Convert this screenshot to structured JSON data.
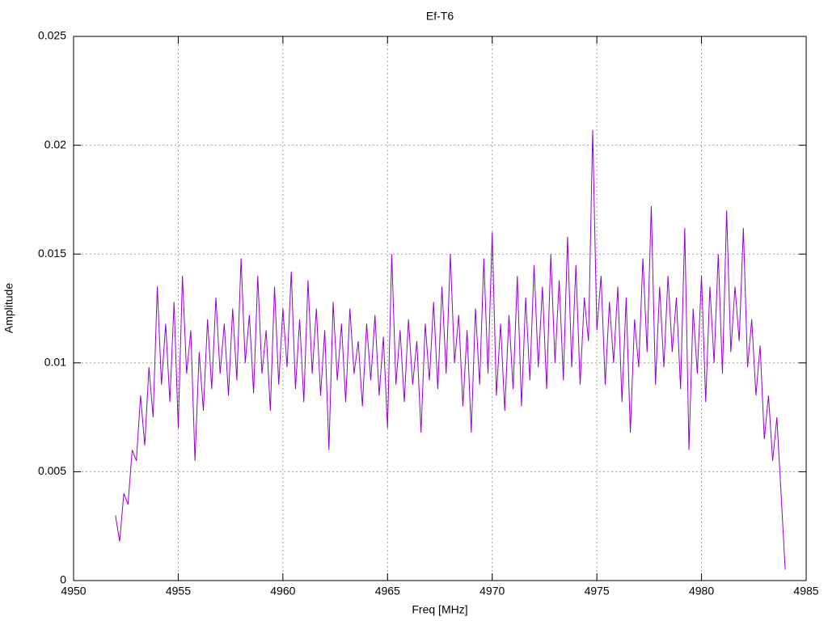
{
  "chart_data": {
    "type": "line",
    "title": "Ef-T6",
    "x_label": "Freq [MHz]",
    "y_label": "Amplitude",
    "color": "#9400d3",
    "grid": true,
    "xlim": [
      4950,
      4985
    ],
    "xticks": [
      4950,
      4955,
      4960,
      4965,
      4970,
      4975,
      4980,
      4985
    ],
    "ylim": [
      0,
      0.025
    ],
    "yticks": [
      0,
      0.005,
      0.01,
      0.015,
      0.02,
      0.025
    ],
    "x": [
      4952,
      4952.2,
      4952.4,
      4952.6,
      4952.8,
      4953,
      4953.2,
      4953.4,
      4953.6,
      4953.8,
      4954,
      4954.2,
      4954.4,
      4954.6,
      4954.8,
      4955,
      4955.2,
      4955.4,
      4955.6,
      4955.8,
      4956,
      4956.2,
      4956.4,
      4956.6,
      4956.8,
      4957,
      4957.2,
      4957.4,
      4957.6,
      4957.8,
      4958,
      4958.2,
      4958.4,
      4958.6,
      4958.8,
      4959,
      4959.2,
      4959.4,
      4959.6,
      4959.8,
      4960,
      4960.2,
      4960.4,
      4960.6,
      4960.8,
      4961,
      4961.2,
      4961.4,
      4961.6,
      4961.8,
      4962,
      4962.2,
      4962.4,
      4962.6,
      4962.8,
      4963,
      4963.2,
      4963.4,
      4963.6,
      4963.8,
      4964,
      4964.2,
      4964.4,
      4964.6,
      4964.8,
      4965,
      4965.2,
      4965.4,
      4965.6,
      4965.8,
      4966,
      4966.2,
      4966.4,
      4966.6,
      4966.8,
      4967,
      4967.2,
      4967.4,
      4967.6,
      4967.8,
      4968,
      4968.2,
      4968.4,
      4968.6,
      4968.8,
      4969,
      4969.2,
      4969.4,
      4969.6,
      4969.8,
      4970,
      4970.2,
      4970.4,
      4970.6,
      4970.8,
      4971,
      4971.2,
      4971.4,
      4971.6,
      4971.8,
      4972,
      4972.2,
      4972.4,
      4972.6,
      4972.8,
      4973,
      4973.2,
      4973.4,
      4973.6,
      4973.8,
      4974,
      4974.2,
      4974.4,
      4974.6,
      4974.8,
      4975,
      4975.2,
      4975.4,
      4975.6,
      4975.8,
      4976,
      4976.2,
      4976.4,
      4976.6,
      4976.8,
      4977,
      4977.2,
      4977.4,
      4977.6,
      4977.8,
      4978,
      4978.2,
      4978.4,
      4978.6,
      4978.8,
      4979,
      4979.2,
      4979.4,
      4979.6,
      4979.8,
      4980,
      4980.2,
      4980.4,
      4980.6,
      4980.8,
      4981,
      4981.2,
      4981.4,
      4981.6,
      4981.8,
      4982,
      4982.2,
      4982.4,
      4982.6,
      4982.8,
      4983,
      4983.2,
      4983.4,
      4983.6,
      4983.8,
      4984
    ],
    "values": [
      0.003,
      0.0018,
      0.004,
      0.0035,
      0.006,
      0.0055,
      0.0085,
      0.0062,
      0.0098,
      0.0075,
      0.0135,
      0.009,
      0.0118,
      0.0082,
      0.0128,
      0.007,
      0.014,
      0.0095,
      0.0115,
      0.0055,
      0.0105,
      0.0078,
      0.012,
      0.0088,
      0.013,
      0.0095,
      0.0118,
      0.0085,
      0.0125,
      0.0092,
      0.0148,
      0.01,
      0.0122,
      0.0086,
      0.014,
      0.0095,
      0.0115,
      0.0078,
      0.0135,
      0.009,
      0.0125,
      0.0098,
      0.0142,
      0.0088,
      0.012,
      0.0082,
      0.0138,
      0.0095,
      0.0125,
      0.0085,
      0.0115,
      0.006,
      0.0128,
      0.0092,
      0.0118,
      0.0082,
      0.0125,
      0.0095,
      0.011,
      0.008,
      0.0118,
      0.0092,
      0.0122,
      0.0085,
      0.0112,
      0.007,
      0.015,
      0.009,
      0.0115,
      0.0082,
      0.012,
      0.009,
      0.011,
      0.0068,
      0.0118,
      0.0092,
      0.0128,
      0.0088,
      0.0135,
      0.0095,
      0.015,
      0.01,
      0.0122,
      0.008,
      0.0115,
      0.0068,
      0.0125,
      0.009,
      0.0148,
      0.0095,
      0.016,
      0.0085,
      0.0118,
      0.0078,
      0.0122,
      0.0088,
      0.014,
      0.008,
      0.013,
      0.0092,
      0.0145,
      0.0098,
      0.0135,
      0.0088,
      0.015,
      0.01,
      0.0138,
      0.0092,
      0.0158,
      0.0098,
      0.0145,
      0.009,
      0.013,
      0.011,
      0.0207,
      0.0115,
      0.014,
      0.009,
      0.0128,
      0.01,
      0.0135,
      0.0082,
      0.013,
      0.0068,
      0.012,
      0.0098,
      0.0148,
      0.0105,
      0.0172,
      0.009,
      0.0135,
      0.0098,
      0.014,
      0.0105,
      0.013,
      0.0088,
      0.0162,
      0.006,
      0.0125,
      0.0095,
      0.014,
      0.0082,
      0.0135,
      0.01,
      0.015,
      0.0095,
      0.017,
      0.0105,
      0.0135,
      0.011,
      0.0162,
      0.0098,
      0.012,
      0.0085,
      0.0108,
      0.0065,
      0.0085,
      0.0055,
      0.0075,
      0.004,
      0.0005
    ]
  }
}
